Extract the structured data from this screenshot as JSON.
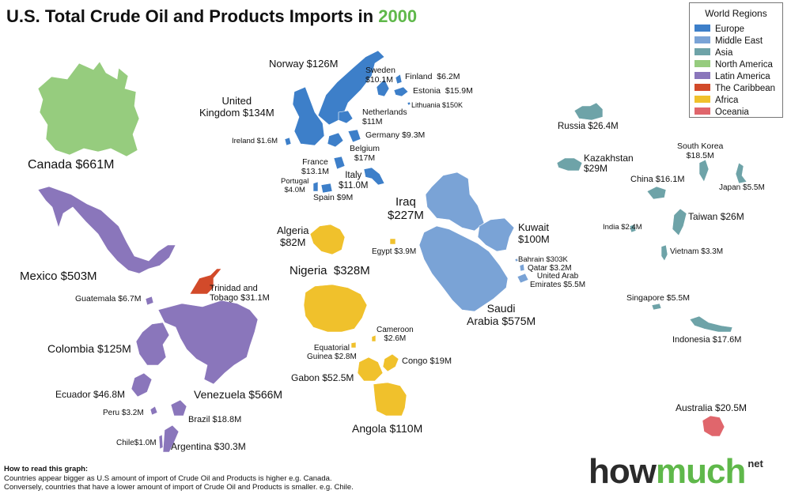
{
  "title": {
    "prefix": "U.S. Total Crude Oil and Products Imports in",
    "year": "2000",
    "year_color": "#5fb84a"
  },
  "legend": {
    "title": "World Regions",
    "items": [
      {
        "name": "Europe",
        "color": "#3d7fc9"
      },
      {
        "name": "Middle East",
        "color": "#7aa3d6"
      },
      {
        "name": "Asia",
        "color": "#6ea3a8"
      },
      {
        "name": "North America",
        "color": "#96cc7e"
      },
      {
        "name": "Latin America",
        "color": "#8a76bb"
      },
      {
        "name": "The Caribbean",
        "color": "#d24a2a"
      },
      {
        "name": "Africa",
        "color": "#f0c12c"
      },
      {
        "name": "Oceania",
        "color": "#e0666c"
      }
    ]
  },
  "countries": [
    {
      "id": "canada",
      "region": "North America",
      "label": "Canada $661M"
    },
    {
      "id": "mexico",
      "region": "Latin America",
      "label": "Mexico $503M"
    },
    {
      "id": "guatemala",
      "region": "Latin America",
      "label": "Guatemala $6.7M"
    },
    {
      "id": "colombia",
      "region": "Latin America",
      "label": "Colombia $125M"
    },
    {
      "id": "venezuela",
      "region": "Latin America",
      "label": "Venezuela $566M"
    },
    {
      "id": "ecuador",
      "region": "Latin America",
      "label": "Ecuador $46.8M"
    },
    {
      "id": "peru",
      "region": "Latin America",
      "label": "Peru $3.2M"
    },
    {
      "id": "brazil",
      "region": "Latin America",
      "label": "Brazil $18.8M"
    },
    {
      "id": "chile",
      "region": "Latin America",
      "label": "Chile$1.0M"
    },
    {
      "id": "argentina",
      "region": "Latin America",
      "label": "Argentina $30.3M"
    },
    {
      "id": "trinidad",
      "region": "The Caribbean",
      "label": "Trinidad and\nTobago $31.1M"
    },
    {
      "id": "norway",
      "region": "Europe",
      "label": "Norway $126M"
    },
    {
      "id": "sweden",
      "region": "Europe",
      "label": "Sweden\n$10.1M"
    },
    {
      "id": "finland",
      "region": "Europe",
      "label": "Finland  $6.2M"
    },
    {
      "id": "estonia",
      "region": "Europe",
      "label": "Estonia  $15.9M"
    },
    {
      "id": "lithuania",
      "region": "Europe",
      "label": "Lithuania $150K"
    },
    {
      "id": "uk",
      "region": "Europe",
      "label": "United\nKingdom $134M"
    },
    {
      "id": "netherlands",
      "region": "Europe",
      "label": "Netherlands\n$11M"
    },
    {
      "id": "germany",
      "region": "Europe",
      "label": "Germany $9.3M"
    },
    {
      "id": "ireland",
      "region": "Europe",
      "label": "Ireland $1.6M"
    },
    {
      "id": "belgium",
      "region": "Europe",
      "label": "Belgium\n$17M"
    },
    {
      "id": "france",
      "region": "Europe",
      "label": "France\n$13.1M"
    },
    {
      "id": "italy",
      "region": "Europe",
      "label": "Italy\n$11.0M"
    },
    {
      "id": "portugal",
      "region": "Europe",
      "label": "Portugal\n$4.0M"
    },
    {
      "id": "spain",
      "region": "Europe",
      "label": "Spain $9M"
    },
    {
      "id": "iraq",
      "region": "Middle East",
      "label": "Iraq\n$227M"
    },
    {
      "id": "kuwait",
      "region": "Middle East",
      "label": "Kuwait\n$100M"
    },
    {
      "id": "saudi",
      "region": "Middle East",
      "label": "Saudi\nArabia $575M"
    },
    {
      "id": "bahrain",
      "region": "Middle East",
      "label": "Bahrain $303K"
    },
    {
      "id": "qatar",
      "region": "Middle East",
      "label": "Qatar $3.2M"
    },
    {
      "id": "uae",
      "region": "Middle East",
      "label": "United Arab\nEmirates $5.5M"
    },
    {
      "id": "algeria",
      "region": "Africa",
      "label": "Algeria\n$82M"
    },
    {
      "id": "egypt",
      "region": "Africa",
      "label": "Egypt $3.9M"
    },
    {
      "id": "nigeria",
      "region": "Africa",
      "label": "Nigeria  $328M"
    },
    {
      "id": "cameroon",
      "region": "Africa",
      "label": "Cameroon\n$2.6M"
    },
    {
      "id": "eqguinea",
      "region": "Africa",
      "label": "Equatorial\nGuinea $2.8M"
    },
    {
      "id": "gabon",
      "region": "Africa",
      "label": "Gabon $52.5M"
    },
    {
      "id": "congo",
      "region": "Africa",
      "label": "Congo $19M"
    },
    {
      "id": "angola",
      "region": "Africa",
      "label": "Angola $110M"
    },
    {
      "id": "russia",
      "region": "Asia",
      "label": "Russia $26.4M"
    },
    {
      "id": "kazakhstan",
      "region": "Asia",
      "label": "Kazakhstan\n$29M"
    },
    {
      "id": "southkorea",
      "region": "Asia",
      "label": "South Korea\n$18.5M"
    },
    {
      "id": "china",
      "region": "Asia",
      "label": "China $16.1M"
    },
    {
      "id": "japan",
      "region": "Asia",
      "label": "Japan $5.5M"
    },
    {
      "id": "taiwan",
      "region": "Asia",
      "label": "Taiwan $26M"
    },
    {
      "id": "india",
      "region": "Asia",
      "label": "India $2.4M"
    },
    {
      "id": "vietnam",
      "region": "Asia",
      "label": "Vietnam $3.3M"
    },
    {
      "id": "singapore",
      "region": "Asia",
      "label": "Singapore $5.5M"
    },
    {
      "id": "indonesia",
      "region": "Asia",
      "label": "Indonesia $17.6M"
    },
    {
      "id": "australia",
      "region": "Oceania",
      "label": "Australia $20.5M"
    }
  ],
  "footer": {
    "heading": "How to read this graph:",
    "line1": "Countries appear bigger as U.S amount of import of Crude Oil and Products is higher e.g. Canada.",
    "line2": "Conversely, countries that have a lower amount of import of Crude Oil and Products is smaller. e.g. Chile."
  },
  "logo": {
    "how": "how",
    "much": "much",
    "net": "net"
  }
}
